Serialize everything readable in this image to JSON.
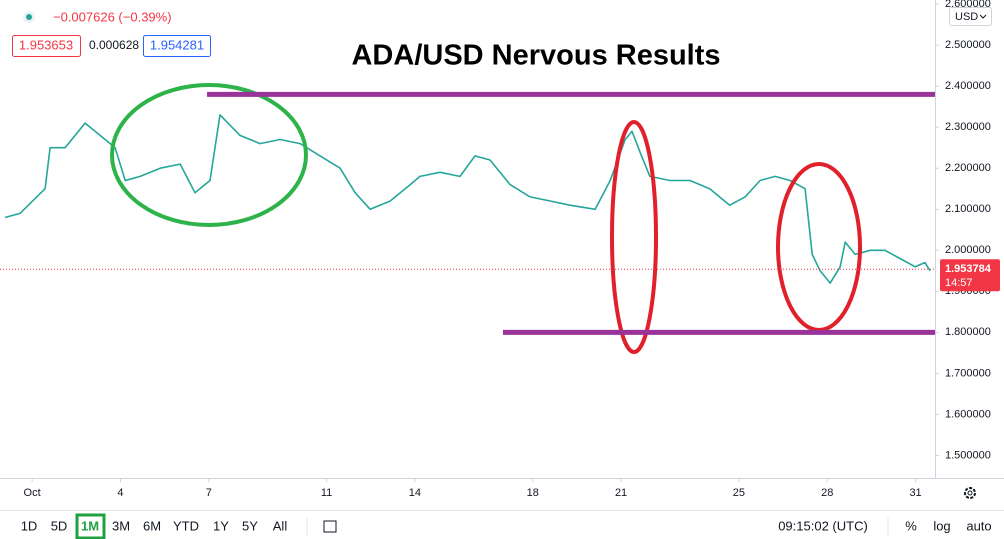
{
  "chart_data": {
    "type": "line",
    "title": "ADA/USD Nervous Results",
    "currency": "USD",
    "x": [
      0.08,
      0.59,
      1.44,
      1.61,
      2.12,
      2.8,
      3.31,
      3.82,
      4.16,
      4.67,
      5.35,
      6.03,
      6.53,
      7.04,
      7.38,
      8.06,
      8.74,
      9.42,
      10.1,
      10.78,
      11.46,
      11.97,
      12.48,
      13.16,
      13.84,
      14.17,
      14.85,
      15.53,
      16.04,
      16.55,
      17.23,
      17.91,
      18.59,
      19.27,
      20.12,
      20.63,
      21.14,
      21.37,
      21.64,
      21.98,
      22.66,
      23.34,
      24.01,
      24.69,
      25.21,
      25.72,
      26.23,
      26.74,
      27.25,
      27.49,
      27.76,
      28.1,
      28.44,
      28.61,
      28.95,
      29.46,
      29.96,
      30.47,
      30.98,
      31.32,
      31.49
    ],
    "series": [
      {
        "name": "ADA/USD",
        "color": "#26a69a",
        "values": [
          2.08,
          2.09,
          2.15,
          2.25,
          2.25,
          2.31,
          2.28,
          2.25,
          2.17,
          2.18,
          2.2,
          2.21,
          2.14,
          2.17,
          2.33,
          2.28,
          2.26,
          2.27,
          2.26,
          2.23,
          2.2,
          2.14,
          2.1,
          2.12,
          2.16,
          2.18,
          2.19,
          2.18,
          2.23,
          2.22,
          2.16,
          2.13,
          2.12,
          2.11,
          2.1,
          2.17,
          2.27,
          2.29,
          2.24,
          2.18,
          2.17,
          2.17,
          2.15,
          2.11,
          2.13,
          2.17,
          2.18,
          2.17,
          2.15,
          1.99,
          1.95,
          1.92,
          1.96,
          2.02,
          1.99,
          2.0,
          2.0,
          1.98,
          1.96,
          1.97,
          1.95
        ]
      }
    ],
    "xlim": [
      -0.09,
      31.66
    ],
    "xticks": [
      {
        "value": 1,
        "label": "Oct"
      },
      4,
      7,
      11,
      14,
      18,
      21,
      25,
      28,
      31
    ],
    "ylim": [
      1.445,
      2.61
    ],
    "yticks": [
      {
        "value": 1.5,
        "label": "1.500000"
      },
      {
        "value": 1.6,
        "label": "1.600000"
      },
      {
        "value": 1.7,
        "label": "1.700000"
      },
      {
        "value": 1.8,
        "label": "1.800000"
      },
      {
        "value": 1.9,
        "label": "1.900000"
      },
      {
        "value": 2.0,
        "label": "2.000000"
      },
      {
        "value": 2.1,
        "label": "2.100000"
      },
      {
        "value": 2.2,
        "label": "2.200000"
      },
      {
        "value": 2.3,
        "label": "2.300000"
      },
      {
        "value": 2.4,
        "label": "2.400000"
      },
      {
        "value": 2.5,
        "label": "2.500000"
      },
      {
        "value": 2.6,
        "label": "2.600000"
      }
    ],
    "grid": false,
    "levels": [
      {
        "value": 2.38,
        "start": 6.94,
        "color": "#993399"
      },
      {
        "value": 1.8,
        "start": 16.99,
        "color": "#993399"
      }
    ],
    "last_price": {
      "value": 1.953784,
      "label": "1.953784",
      "countdown": "14:57",
      "color": "#f23645"
    }
  },
  "header": {
    "change": "−0.007626 (−0.39%)",
    "bid": "1.953653",
    "spread": "0.000628",
    "ask": "1.954281"
  },
  "toolbar": {
    "ranges": [
      "1D",
      "5D",
      "1M",
      "3M",
      "6M",
      "YTD",
      "1Y",
      "5Y",
      "All"
    ],
    "active": "1M",
    "time": "09:15:02 (UTC)",
    "options": [
      "%",
      "log",
      "auto"
    ]
  }
}
